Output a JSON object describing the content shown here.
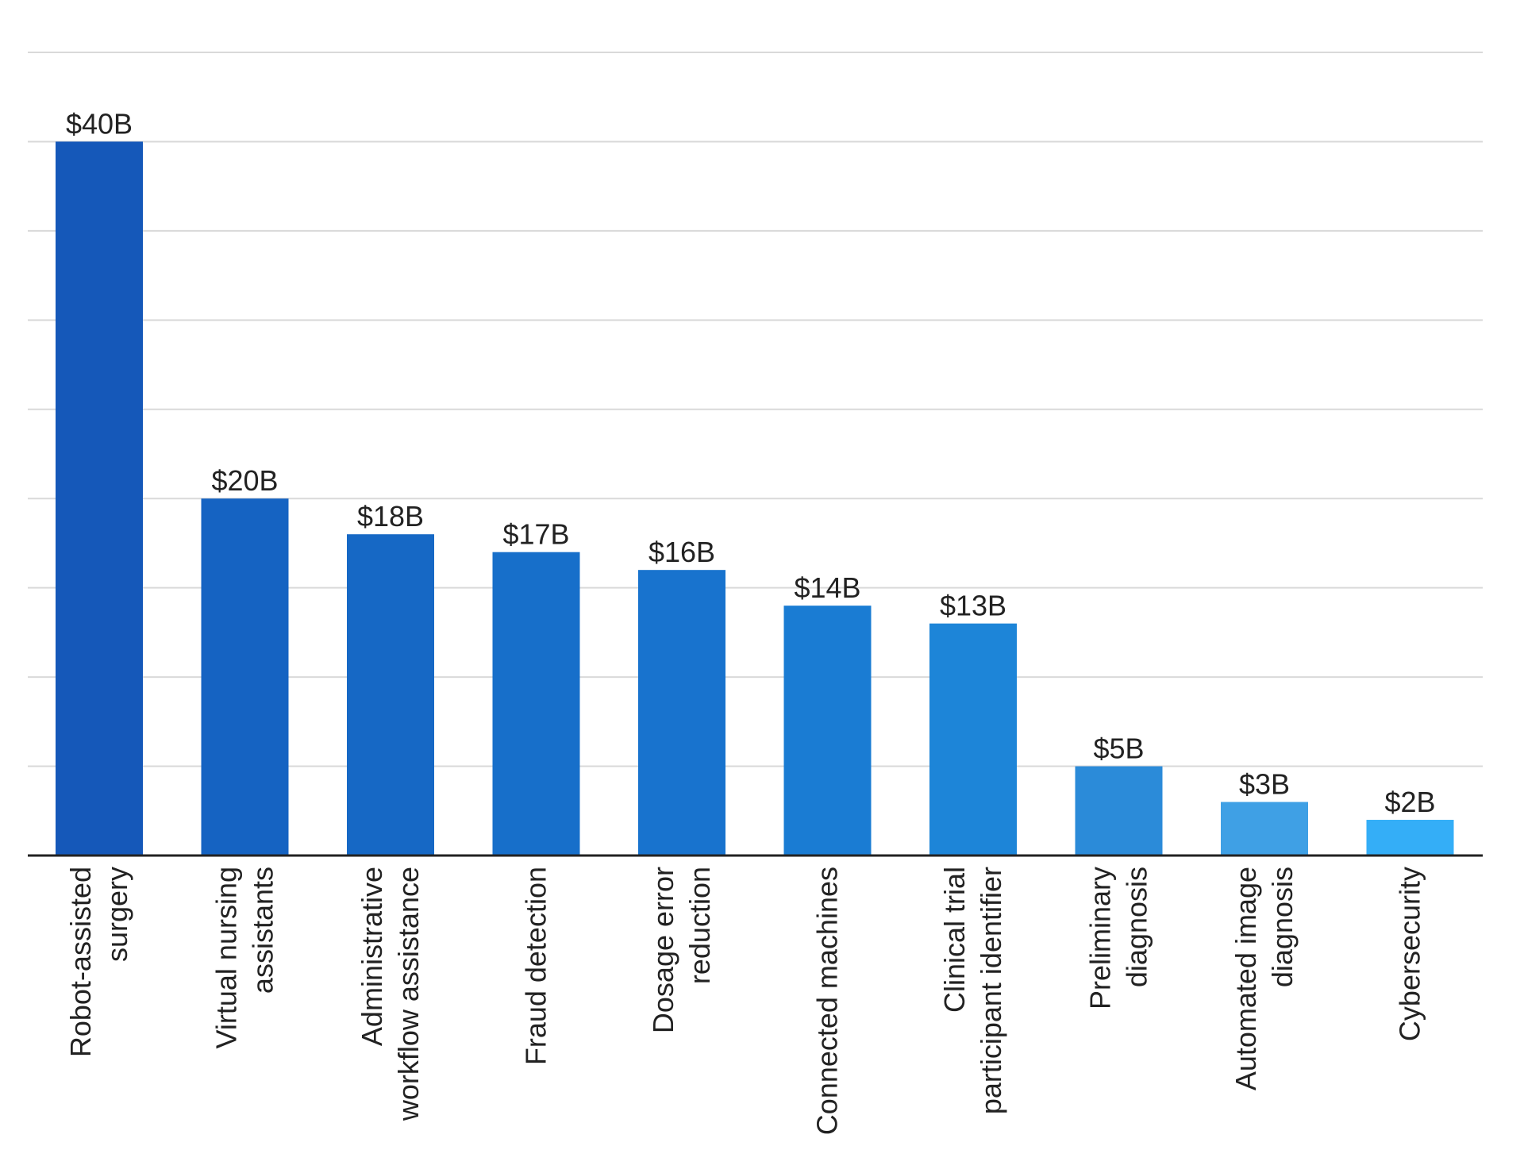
{
  "chart_data": {
    "type": "bar",
    "title": "",
    "xlabel": "",
    "ylabel": "",
    "ylim": [
      0,
      45
    ],
    "grid": true,
    "categories": [
      [
        "Robot-assisted",
        "surgery"
      ],
      [
        "Virtual nursing",
        "assistants"
      ],
      [
        "Administrative",
        "workflow assistance"
      ],
      [
        "Fraud detection"
      ],
      [
        "Dosage error",
        "reduction"
      ],
      [
        "Connected machines"
      ],
      [
        "Clinical trial",
        "participant identifier"
      ],
      [
        "Preliminary",
        "diagnosis"
      ],
      [
        "Automated image",
        "diagnosis"
      ],
      [
        "Cybersecurity"
      ]
    ],
    "values": [
      40,
      20,
      18,
      17,
      16,
      14,
      13,
      5,
      3,
      2
    ],
    "data_labels": [
      "$40B",
      "$20B",
      "$18B",
      "$17B",
      "$16B",
      "$14B",
      "$13B",
      "$5B",
      "$3B",
      "$2B"
    ],
    "colors": [
      "#1558b9",
      "#1563c2",
      "#1668c5",
      "#176fca",
      "#1873ce",
      "#1a7cd3",
      "#1d85d8",
      "#2b8bd9",
      "#3fa0e5",
      "#34aef7"
    ]
  }
}
